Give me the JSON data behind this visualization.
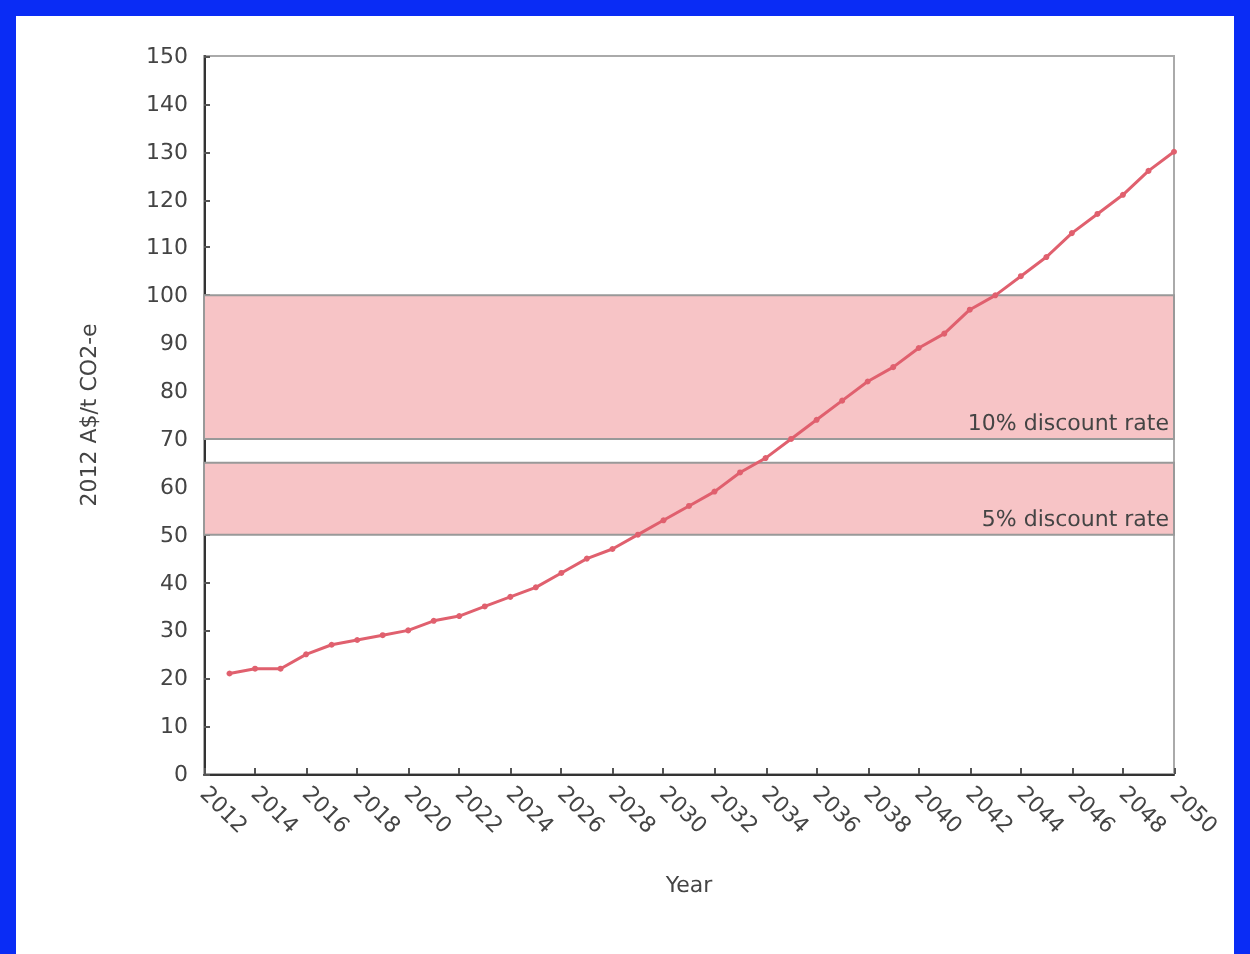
{
  "chart_data": {
    "type": "line",
    "xlabel": "Year",
    "ylabel": "2012 A$/t CO2-e",
    "x": [
      2013,
      2014,
      2015,
      2016,
      2017,
      2018,
      2019,
      2020,
      2021,
      2022,
      2023,
      2024,
      2025,
      2026,
      2027,
      2028,
      2029,
      2030,
      2031,
      2032,
      2033,
      2034,
      2035,
      2036,
      2037,
      2038,
      2039,
      2040,
      2041,
      2042,
      2043,
      2044,
      2045,
      2046,
      2047,
      2048,
      2049,
      2050
    ],
    "series": [
      {
        "color": "#e0606e",
        "values": [
          21,
          22,
          22,
          25,
          27,
          28,
          29,
          30,
          32,
          33,
          35,
          37,
          39,
          42,
          45,
          47,
          50,
          53,
          56,
          59,
          63,
          66,
          70,
          74,
          78,
          82,
          85,
          89,
          92,
          97,
          100,
          104,
          108,
          113,
          117,
          121,
          126,
          130
        ]
      }
    ],
    "xlim": [
      2012,
      2050
    ],
    "xticks": [
      2012,
      2014,
      2016,
      2018,
      2020,
      2022,
      2024,
      2026,
      2028,
      2030,
      2032,
      2034,
      2036,
      2038,
      2040,
      2042,
      2044,
      2046,
      2048,
      2050
    ],
    "ylim": [
      0,
      150
    ],
    "yticks": [
      0,
      10,
      20,
      30,
      40,
      50,
      60,
      70,
      80,
      90,
      100,
      110,
      120,
      130,
      140,
      150
    ],
    "bands": [
      {
        "axis": "y",
        "from": 70,
        "to": 100,
        "label": "10% discount rate",
        "color": "#f7c4c6"
      },
      {
        "axis": "y",
        "from": 50,
        "to": 65,
        "label": "5% discount rate",
        "color": "#f7c4c6"
      }
    ],
    "grid": false,
    "marker": "circle",
    "line_style": "solid"
  }
}
